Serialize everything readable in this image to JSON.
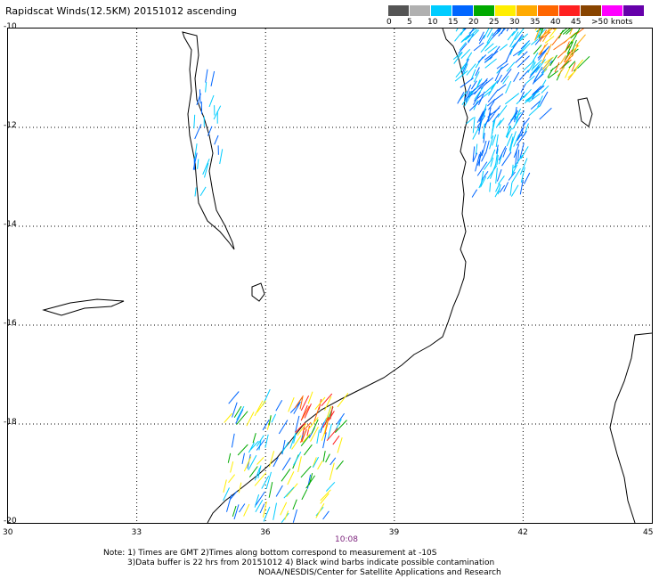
{
  "header": {
    "title": "Rapidscat Winds(12.5KM) 20151012 ascending"
  },
  "legend": {
    "colors": [
      "#555555",
      "#b0b0b0",
      "#00ccff",
      "#0066ff",
      "#00aa00",
      "#ffee00",
      "#ffaa00",
      "#ff6600",
      "#ff2020",
      "#884400",
      "#ff00ff",
      "#6600aa"
    ],
    "labels": [
      "0",
      "5",
      "10",
      "15",
      "20",
      "25",
      "30",
      "35",
      "40",
      "45",
      ">50 knots"
    ]
  },
  "map": {
    "lat_labels": [
      "-10",
      "-12",
      "-14",
      "-16",
      "-18",
      "-20"
    ],
    "lon_labels": [
      "30",
      "33",
      "36",
      "39",
      "42",
      "45"
    ]
  },
  "footer": {
    "time": "10:08",
    "note_line1": "Note: 1) Times are GMT 2)Times along bottom correspond to measurement at -10S",
    "note_line2": "3)Data buffer is 22 hrs from 20151012 4) Black wind barbs indicate possible contamination",
    "credit": "NOAA/NESDIS/Center for Satellite Applications and Research"
  }
}
